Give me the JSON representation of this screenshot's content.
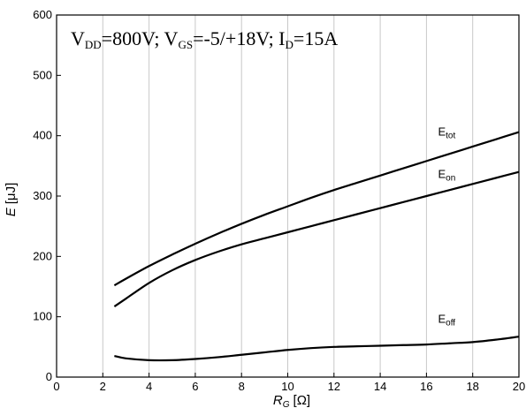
{
  "chart_data": {
    "type": "line",
    "title": {
      "parts": [
        {
          "text": "V",
          "sub": "DD"
        },
        {
          "text": "=800V; V",
          "sub": "GS"
        },
        {
          "text": "=-5/+18V; I",
          "sub": "D"
        },
        {
          "text": "=15A",
          "sub": ""
        }
      ]
    },
    "xlabel": {
      "main": "R",
      "sub": "G",
      "unit": "[Ω]"
    },
    "ylabel": {
      "main": "E",
      "unit": "[μJ]"
    },
    "xlim": [
      0,
      20
    ],
    "ylim": [
      0,
      600
    ],
    "x_ticks": [
      0,
      2,
      4,
      6,
      8,
      10,
      12,
      14,
      16,
      18,
      20
    ],
    "y_ticks": [
      0,
      100,
      200,
      300,
      400,
      500,
      600
    ],
    "grid": "vertical",
    "series": [
      {
        "name": "E",
        "name_sub": "tot",
        "label_at": [
          16.5,
          400
        ],
        "x": [
          2.5,
          3,
          4,
          5,
          6,
          7,
          8,
          9,
          10,
          11,
          12,
          13,
          14,
          15,
          16,
          17,
          18,
          19,
          20
        ],
        "y": [
          152,
          163,
          184,
          203,
          221,
          238,
          254,
          269,
          283,
          297,
          310,
          322,
          334,
          346,
          358,
          370,
          382,
          394,
          406
        ]
      },
      {
        "name": "E",
        "name_sub": "on",
        "label_at": [
          16.5,
          330
        ],
        "x": [
          2.5,
          3,
          4,
          5,
          6,
          7,
          8,
          9,
          10,
          11,
          12,
          13,
          14,
          15,
          16,
          17,
          18,
          19,
          20
        ],
        "y": [
          117,
          130,
          156,
          177,
          194,
          208,
          220,
          230,
          240,
          250,
          260,
          270,
          280,
          290,
          300,
          310,
          320,
          330,
          340
        ]
      },
      {
        "name": "E",
        "name_sub": "off",
        "label_at": [
          16.5,
          90
        ],
        "x": [
          2.5,
          3,
          4,
          5,
          6,
          7,
          8,
          9,
          10,
          11,
          12,
          13,
          14,
          15,
          16,
          17,
          18,
          19,
          20
        ],
        "y": [
          35,
          31,
          28,
          28,
          30,
          33,
          37,
          41,
          45,
          48,
          50,
          51,
          52,
          53,
          54,
          56,
          58,
          62,
          67
        ]
      }
    ]
  }
}
